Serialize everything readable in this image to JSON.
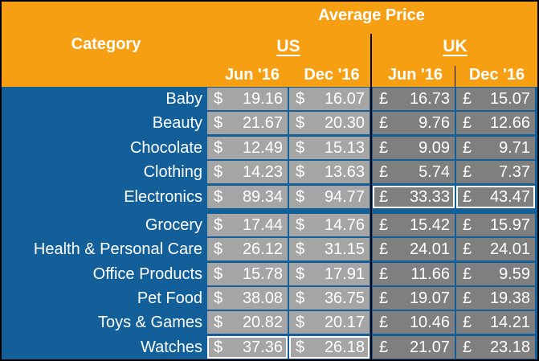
{
  "header": {
    "title": "Average Price",
    "category_label": "Category",
    "us_label": "US",
    "uk_label": "UK",
    "us_dates": [
      "Jun '16",
      "Dec '16"
    ],
    "uk_dates": [
      "Jun '16",
      "Dec '16"
    ]
  },
  "currency": {
    "us": "$",
    "uk": "£"
  },
  "colors": {
    "header": "#F79F13",
    "body": "#135F99",
    "us_cell": "#A5A5A5",
    "uk_cell": "#7F7F7F"
  },
  "rows": [
    {
      "category": "Baby",
      "us_jun": "19.16",
      "us_dec": "16.07",
      "uk_jun": "16.73",
      "uk_dec": "15.07"
    },
    {
      "category": "Beauty",
      "us_jun": "21.67",
      "us_dec": "20.30",
      "uk_jun": "9.76",
      "uk_dec": "12.66"
    },
    {
      "category": "Chocolate",
      "us_jun": "12.49",
      "us_dec": "15.13",
      "uk_jun": "9.09",
      "uk_dec": "9.71"
    },
    {
      "category": "Clothing",
      "us_jun": "14.23",
      "us_dec": "13.63",
      "uk_jun": "5.74",
      "uk_dec": "7.37"
    },
    {
      "category": "Electronics",
      "us_jun": "89.34",
      "us_dec": "94.77",
      "uk_jun": "33.33",
      "uk_dec": "43.47"
    },
    {
      "category": "Grocery",
      "us_jun": "17.44",
      "us_dec": "14.76",
      "uk_jun": "15.42",
      "uk_dec": "15.97"
    },
    {
      "category": "Health & Personal Care",
      "us_jun": "26.12",
      "us_dec": "31.15",
      "uk_jun": "24.01",
      "uk_dec": "24.01"
    },
    {
      "category": "Office Products",
      "us_jun": "15.78",
      "us_dec": "17.91",
      "uk_jun": "11.66",
      "uk_dec": "9.59"
    },
    {
      "category": "Pet Food",
      "us_jun": "38.08",
      "us_dec": "36.75",
      "uk_jun": "19.07",
      "uk_dec": "19.38"
    },
    {
      "category": "Toys & Games",
      "us_jun": "20.82",
      "us_dec": "20.17",
      "uk_jun": "10.46",
      "uk_dec": "14.21"
    },
    {
      "category": "Watches",
      "us_jun": "37.36",
      "us_dec": "26.18",
      "uk_jun": "21.07",
      "uk_dec": "23.18"
    }
  ]
}
